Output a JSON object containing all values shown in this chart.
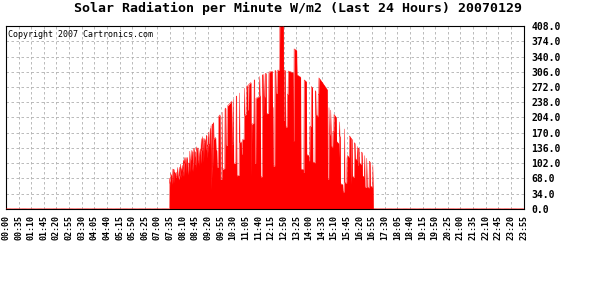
{
  "title": "Solar Radiation per Minute W/m2 (Last 24 Hours) 20070129",
  "copyright_text": "Copyright 2007 Cartronics.com",
  "background_color": "#ffffff",
  "plot_bg_color": "#ffffff",
  "fill_color": "#ff0000",
  "line_color": "#ff0000",
  "grid_color": "#b0b0b0",
  "dashed_line_color": "#ff0000",
  "yticks": [
    0.0,
    34.0,
    68.0,
    102.0,
    136.0,
    170.0,
    204.0,
    238.0,
    272.0,
    306.0,
    340.0,
    374.0,
    408.0
  ],
  "ymax": 408.0,
  "ymin": 0.0,
  "xtick_labels": [
    "00:00",
    "00:35",
    "01:10",
    "01:45",
    "02:20",
    "02:55",
    "03:30",
    "04:05",
    "04:40",
    "05:15",
    "05:50",
    "06:25",
    "07:00",
    "07:35",
    "08:10",
    "08:45",
    "09:20",
    "09:55",
    "10:30",
    "11:05",
    "11:40",
    "12:15",
    "12:50",
    "13:25",
    "14:00",
    "14:35",
    "15:10",
    "15:45",
    "16:20",
    "16:55",
    "17:30",
    "18:05",
    "18:40",
    "19:15",
    "19:50",
    "20:25",
    "21:00",
    "21:35",
    "22:10",
    "22:45",
    "23:20",
    "23:55"
  ],
  "num_points": 1440
}
